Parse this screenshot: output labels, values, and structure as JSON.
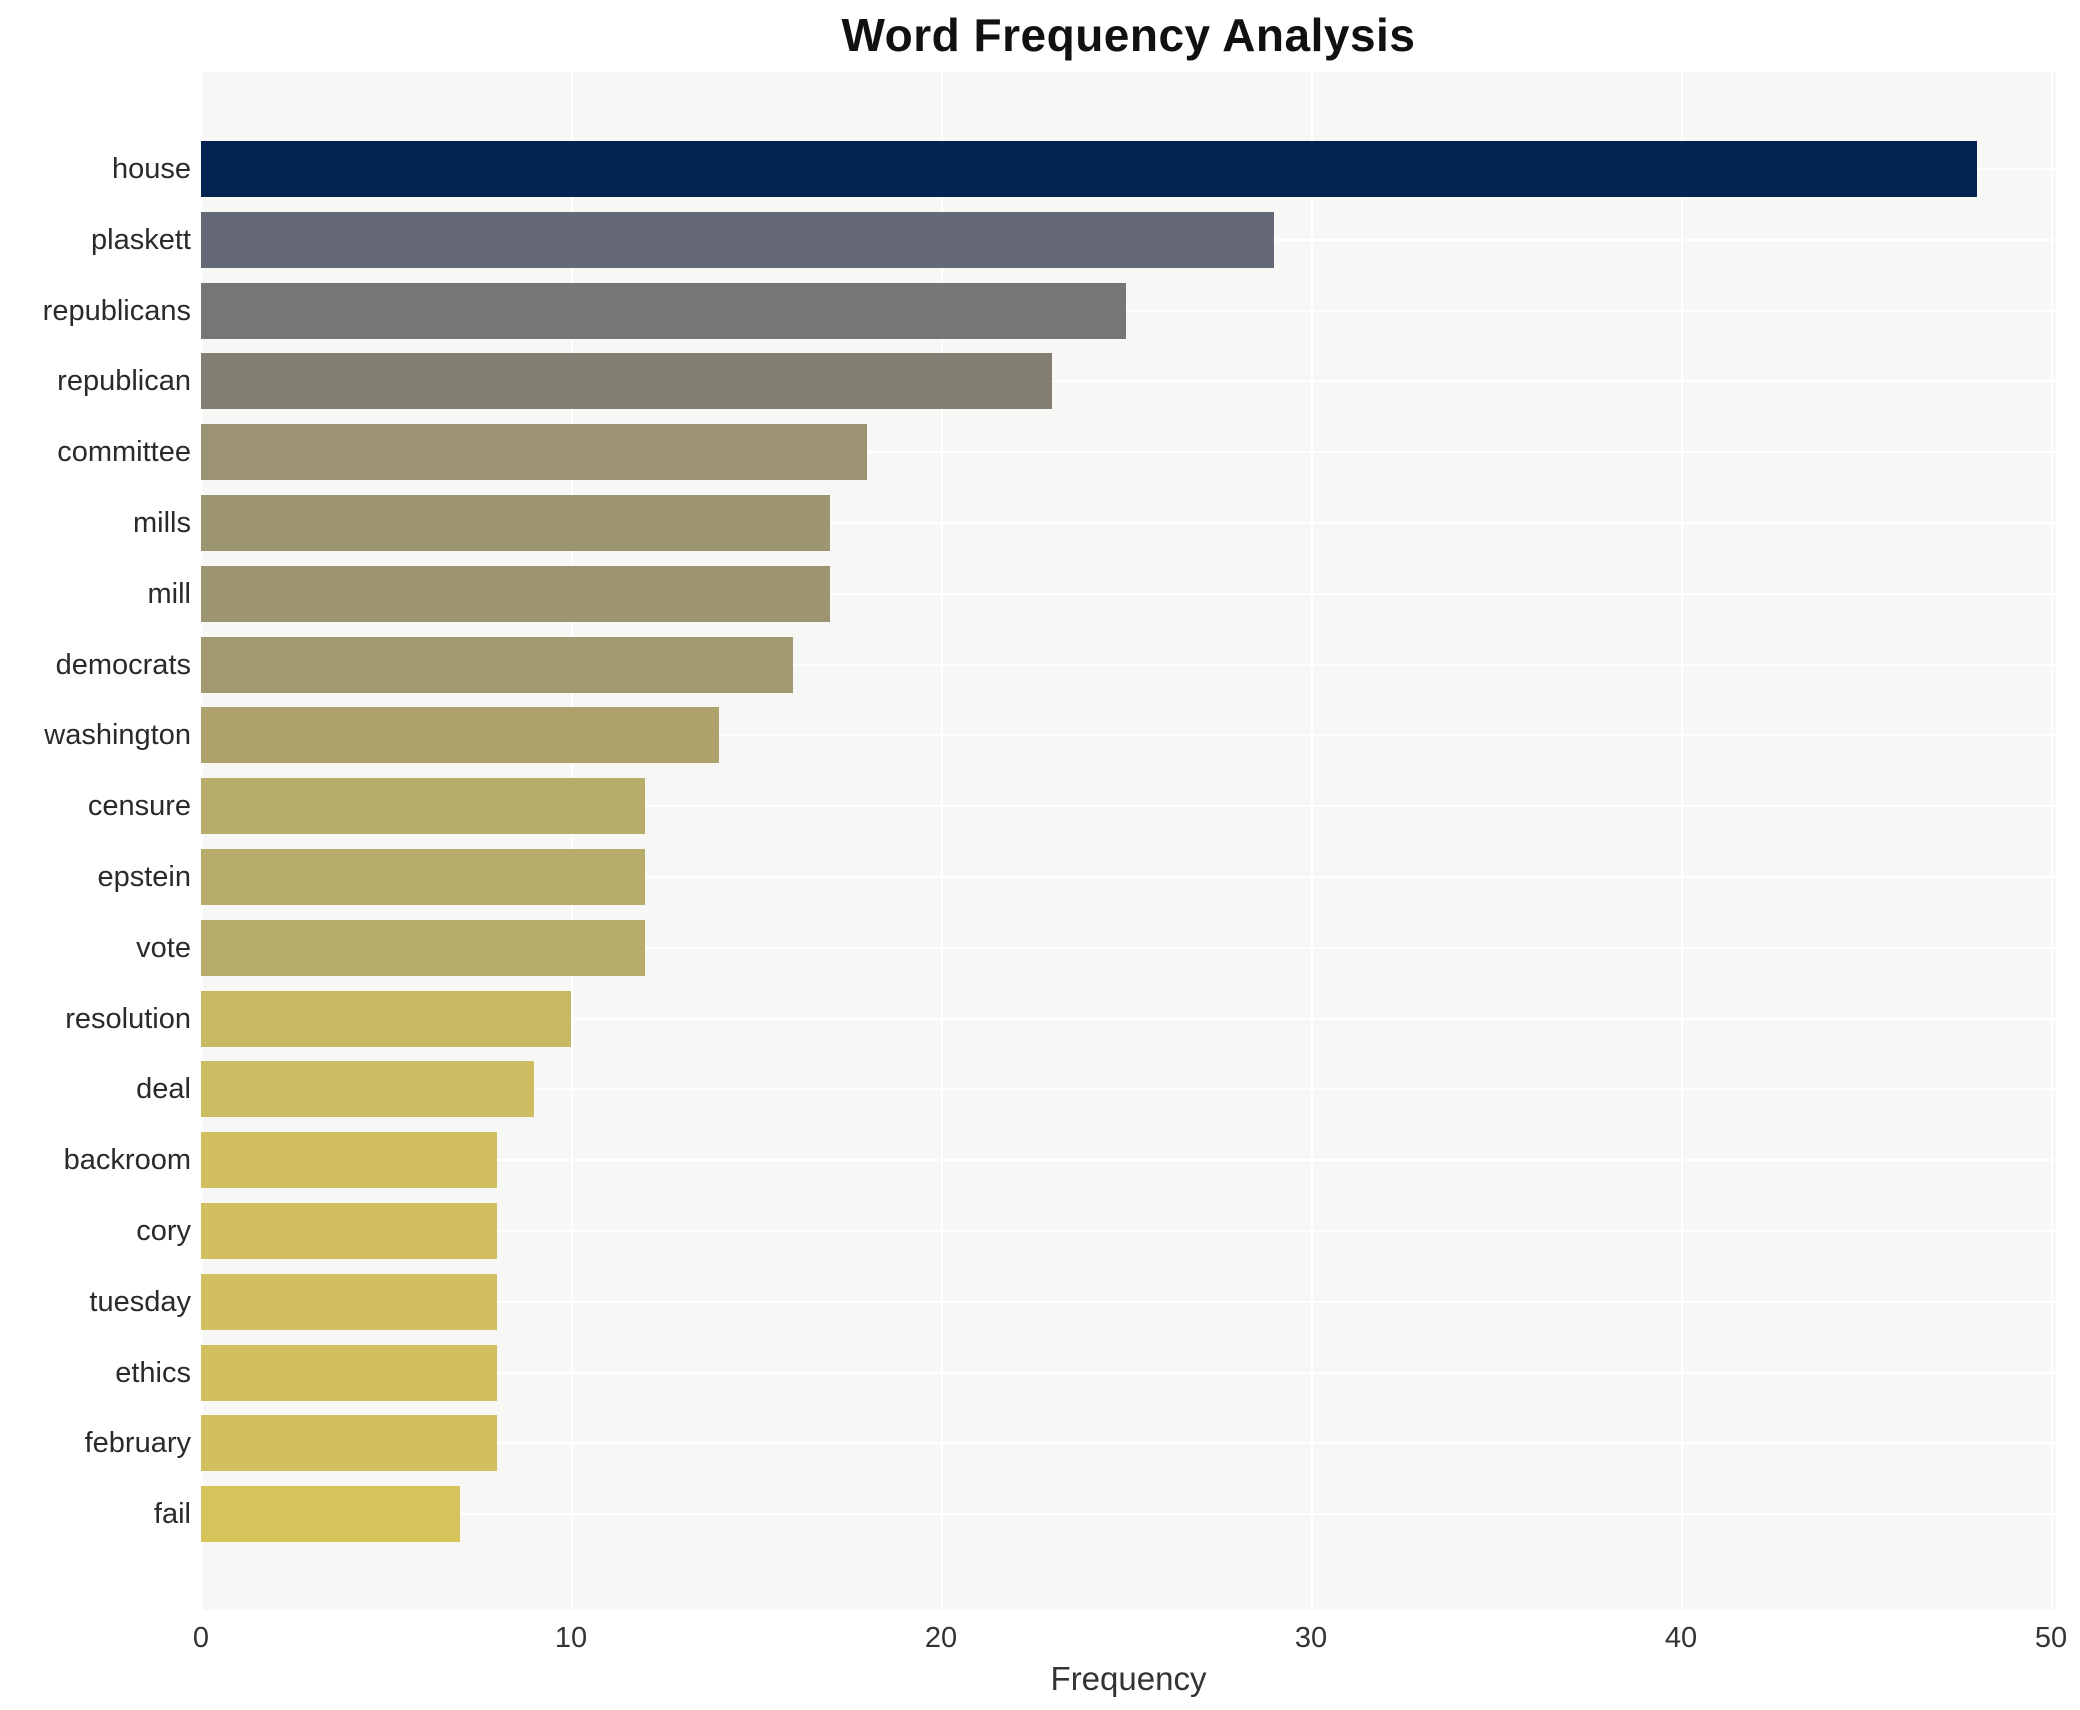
{
  "title": "Word Frequency Analysis",
  "chart_data": {
    "type": "bar",
    "orientation": "horizontal",
    "title": "Word Frequency Analysis",
    "xlabel": "Frequency",
    "ylabel": "",
    "xlim": [
      0,
      50
    ],
    "x_ticks": [
      0,
      10,
      20,
      30,
      40,
      50
    ],
    "grid": true,
    "legend": "none",
    "plot_background": "#f7f7f6",
    "gridline_color": "#ffffff",
    "categories": [
      "house",
      "plaskett",
      "republicans",
      "republican",
      "committee",
      "mills",
      "mill",
      "democrats",
      "washington",
      "censure",
      "epstein",
      "vote",
      "resolution",
      "deal",
      "backroom",
      "cory",
      "tuesday",
      "ethics",
      "february",
      "fail"
    ],
    "values": [
      48,
      29,
      25,
      23,
      18,
      17,
      17,
      16,
      14,
      12,
      12,
      12,
      10,
      9,
      8,
      8,
      8,
      8,
      8,
      7
    ],
    "bar_colors": [
      "#052350",
      "#656877",
      "#767676",
      "#827f72",
      "#9b9372",
      "#9d9571",
      "#9d9571",
      "#a29970",
      "#ada26c",
      "#b8ac6b",
      "#b8ac6b",
      "#b8ac6b",
      "#c7b862",
      "#ccbd62",
      "#d1bf5f",
      "#d1bf5f",
      "#d1bf5f",
      "#d2c05f",
      "#d2c05f",
      "#d6c35c"
    ]
  }
}
